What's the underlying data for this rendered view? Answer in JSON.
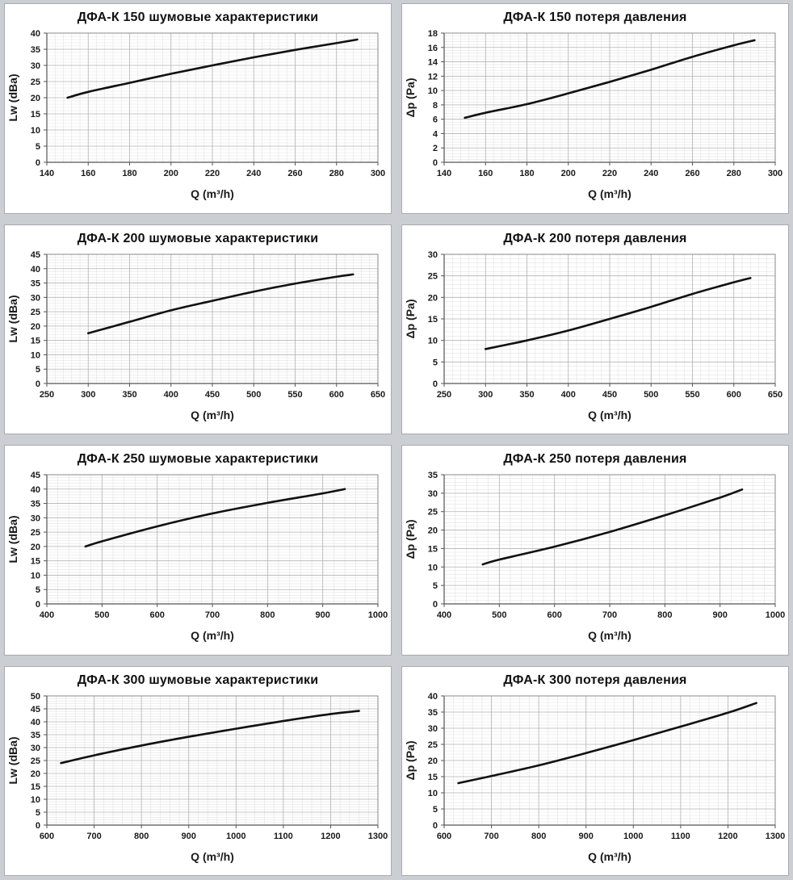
{
  "page": {
    "background": "#cbced2",
    "panel_background": "#ffffff",
    "panel_border": "#a8abaf",
    "line_color": "#111111",
    "grid_major_color": "#b4b4b4",
    "grid_minor_color": "#e3e3e3",
    "axis_color": "#555555"
  },
  "chart_data": [
    {
      "type": "line",
      "title": "ДФА-К 150 шумовые характеристики",
      "xlabel": "Q (m³/h)",
      "ylabel": "Lw (dBa)",
      "xlim": [
        140,
        300
      ],
      "xtick": 20,
      "ylim": [
        0,
        40
      ],
      "ytick": 5,
      "grid": "major+minor",
      "legend": "none",
      "x": [
        150,
        160,
        180,
        200,
        220,
        240,
        260,
        280,
        290
      ],
      "y": [
        20,
        21.8,
        24.6,
        27.4,
        30,
        32.5,
        34.8,
        36.9,
        38
      ]
    },
    {
      "type": "line",
      "title": "ДФА-К 150 потеря давления",
      "xlabel": "Q (m³/h)",
      "ylabel": "Δp (Pa)",
      "xlim": [
        140,
        300
      ],
      "xtick": 20,
      "ylim": [
        0,
        18
      ],
      "ytick": 2,
      "grid": "major+minor",
      "legend": "none",
      "x": [
        150,
        160,
        180,
        200,
        220,
        240,
        260,
        280,
        290
      ],
      "y": [
        6.2,
        6.9,
        8.1,
        9.6,
        11.2,
        12.9,
        14.7,
        16.3,
        17
      ]
    },
    {
      "type": "line",
      "title": "ДФА-К 200 шумовые характеристики",
      "xlabel": "Q (m³/h)",
      "ylabel": "Lw (dBa)",
      "xlim": [
        250,
        650
      ],
      "xtick": 50,
      "ylim": [
        0,
        45
      ],
      "ytick": 5,
      "grid": "major+minor",
      "legend": "none",
      "x": [
        300,
        350,
        400,
        450,
        500,
        550,
        600,
        620
      ],
      "y": [
        17.5,
        21.5,
        25.5,
        28.8,
        32,
        34.8,
        37.2,
        38
      ]
    },
    {
      "type": "line",
      "title": "ДФА-К 200 потеря давления",
      "xlabel": "Q (m³/h)",
      "ylabel": "Δp (Pa)",
      "xlim": [
        250,
        650
      ],
      "xtick": 50,
      "ylim": [
        0,
        30
      ],
      "ytick": 5,
      "grid": "major+minor",
      "legend": "none",
      "x": [
        300,
        350,
        400,
        450,
        500,
        550,
        600,
        620
      ],
      "y": [
        8,
        10,
        12.3,
        15,
        17.8,
        20.8,
        23.5,
        24.5
      ]
    },
    {
      "type": "line",
      "title": "ДФА-К 250 шумовые характеристики",
      "xlabel": "Q (m³/h)",
      "ylabel": "Lw (dBa)",
      "xlim": [
        400,
        1000
      ],
      "xtick": 100,
      "ylim": [
        0,
        45
      ],
      "ytick": 5,
      "grid": "major+minor",
      "legend": "none",
      "x": [
        470,
        500,
        600,
        700,
        800,
        900,
        940
      ],
      "y": [
        20,
        21.8,
        27,
        31.5,
        35.2,
        38.5,
        40
      ]
    },
    {
      "type": "line",
      "title": "ДФА-К 250 потеря давления",
      "xlabel": "Q (m³/h)",
      "ylabel": "Δp (Pa)",
      "xlim": [
        400,
        1000
      ],
      "xtick": 100,
      "ylim": [
        0,
        35
      ],
      "ytick": 5,
      "grid": "major+minor",
      "legend": "none",
      "x": [
        470,
        500,
        600,
        700,
        800,
        900,
        940
      ],
      "y": [
        10.7,
        12,
        15.5,
        19.5,
        24,
        28.8,
        31
      ]
    },
    {
      "type": "line",
      "title": "ДФА-К 300 шумовые характеристики",
      "xlabel": "Q (m³/h)",
      "ylabel": "Lw (dBa)",
      "xlim": [
        600,
        1300
      ],
      "xtick": 100,
      "ylim": [
        0,
        50
      ],
      "ytick": 5,
      "grid": "major+minor",
      "legend": "none",
      "x": [
        630,
        700,
        800,
        900,
        1000,
        1100,
        1200,
        1260
      ],
      "y": [
        24,
        27,
        30.8,
        34.2,
        37.3,
        40.3,
        43,
        44.2
      ]
    },
    {
      "type": "line",
      "title": "ДФА-К 300 потеря давления",
      "xlabel": "Q (m³/h)",
      "ylabel": "Δp (Pa)",
      "xlim": [
        600,
        1300
      ],
      "xtick": 100,
      "ylim": [
        0,
        40
      ],
      "ytick": 5,
      "grid": "major+minor",
      "legend": "none",
      "x": [
        630,
        700,
        800,
        900,
        1000,
        1100,
        1200,
        1260
      ],
      "y": [
        13,
        15.2,
        18.5,
        22.3,
        26.3,
        30.5,
        34.8,
        37.8
      ]
    }
  ]
}
